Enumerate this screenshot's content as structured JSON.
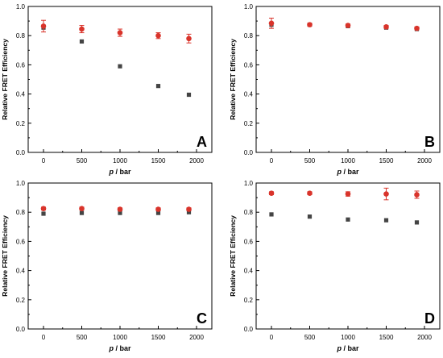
{
  "figure": {
    "x_label_var": "p",
    "x_label_unit": " / bar",
    "y_label": "Relative FRET Efficiency",
    "x_ticks": [
      "0",
      "500",
      "1000",
      "1500",
      "2000"
    ],
    "y_ticks": [
      "0.0",
      "0.2",
      "0.4",
      "0.6",
      "0.8",
      "1.0"
    ]
  },
  "colors": {
    "red_series": "#d9342b",
    "gray_series": "#444444"
  },
  "chart_data": [
    {
      "type": "scatter",
      "panel_label": "A",
      "xlabel": "p / bar",
      "ylabel": "Relative FRET Efficiency",
      "xlim": [
        -200,
        2200
      ],
      "ylim": [
        0,
        1.0
      ],
      "x": [
        0,
        500,
        1000,
        1500,
        1900
      ],
      "series": [
        {
          "color": "#d9342b",
          "marker": "circle",
          "values": [
            0.865,
            0.845,
            0.82,
            0.8,
            0.78
          ],
          "errors": [
            0.04,
            0.025,
            0.025,
            0.02,
            0.03
          ]
        },
        {
          "color": "#444444",
          "marker": "square",
          "values": [
            0.855,
            0.76,
            0.59,
            0.455,
            0.395
          ],
          "errors": [
            0.0,
            0.0,
            0.0,
            0.0,
            0.0
          ]
        }
      ]
    },
    {
      "type": "scatter",
      "panel_label": "B",
      "xlabel": "p / bar",
      "ylabel": "Relative FRET Efficiency",
      "xlim": [
        -200,
        2200
      ],
      "ylim": [
        0,
        1.0
      ],
      "x": [
        0,
        500,
        1000,
        1500,
        1900
      ],
      "series": [
        {
          "color": "#d9342b",
          "marker": "circle",
          "values": [
            0.885,
            0.875,
            0.87,
            0.86,
            0.85
          ],
          "errors": [
            0.035,
            0.01,
            0.01,
            0.01,
            0.01
          ]
        },
        {
          "color": "#444444",
          "marker": "square",
          "values": [
            0.875,
            0.875,
            0.865,
            0.855,
            0.845
          ],
          "errors": [
            0.0,
            0.0,
            0.0,
            0.0,
            0.0
          ]
        }
      ]
    },
    {
      "type": "scatter",
      "panel_label": "C",
      "xlabel": "p / bar",
      "ylabel": "Relative FRET Efficiency",
      "xlim": [
        -200,
        2200
      ],
      "ylim": [
        0,
        1.0
      ],
      "x": [
        0,
        500,
        1000,
        1500,
        1900
      ],
      "series": [
        {
          "color": "#d9342b",
          "marker": "circle",
          "values": [
            0.825,
            0.825,
            0.82,
            0.82,
            0.82
          ],
          "errors": [
            0.01,
            0.01,
            0.01,
            0.01,
            0.01
          ]
        },
        {
          "color": "#444444",
          "marker": "square",
          "values": [
            0.79,
            0.795,
            0.795,
            0.795,
            0.8
          ],
          "errors": [
            0.0,
            0.0,
            0.0,
            0.0,
            0.0
          ]
        }
      ]
    },
    {
      "type": "scatter",
      "panel_label": "D",
      "xlabel": "p / bar",
      "ylabel": "Relative FRET Efficiency",
      "xlim": [
        -200,
        2200
      ],
      "ylim": [
        0,
        1.0
      ],
      "x": [
        0,
        500,
        1000,
        1500,
        1900
      ],
      "series": [
        {
          "color": "#d9342b",
          "marker": "circle",
          "values": [
            0.93,
            0.93,
            0.925,
            0.925,
            0.92
          ],
          "errors": [
            0.01,
            0.01,
            0.015,
            0.04,
            0.025
          ]
        },
        {
          "color": "#444444",
          "marker": "square",
          "values": [
            0.785,
            0.77,
            0.75,
            0.745,
            0.73
          ],
          "errors": [
            0.0,
            0.0,
            0.0,
            0.0,
            0.0
          ]
        }
      ]
    }
  ]
}
